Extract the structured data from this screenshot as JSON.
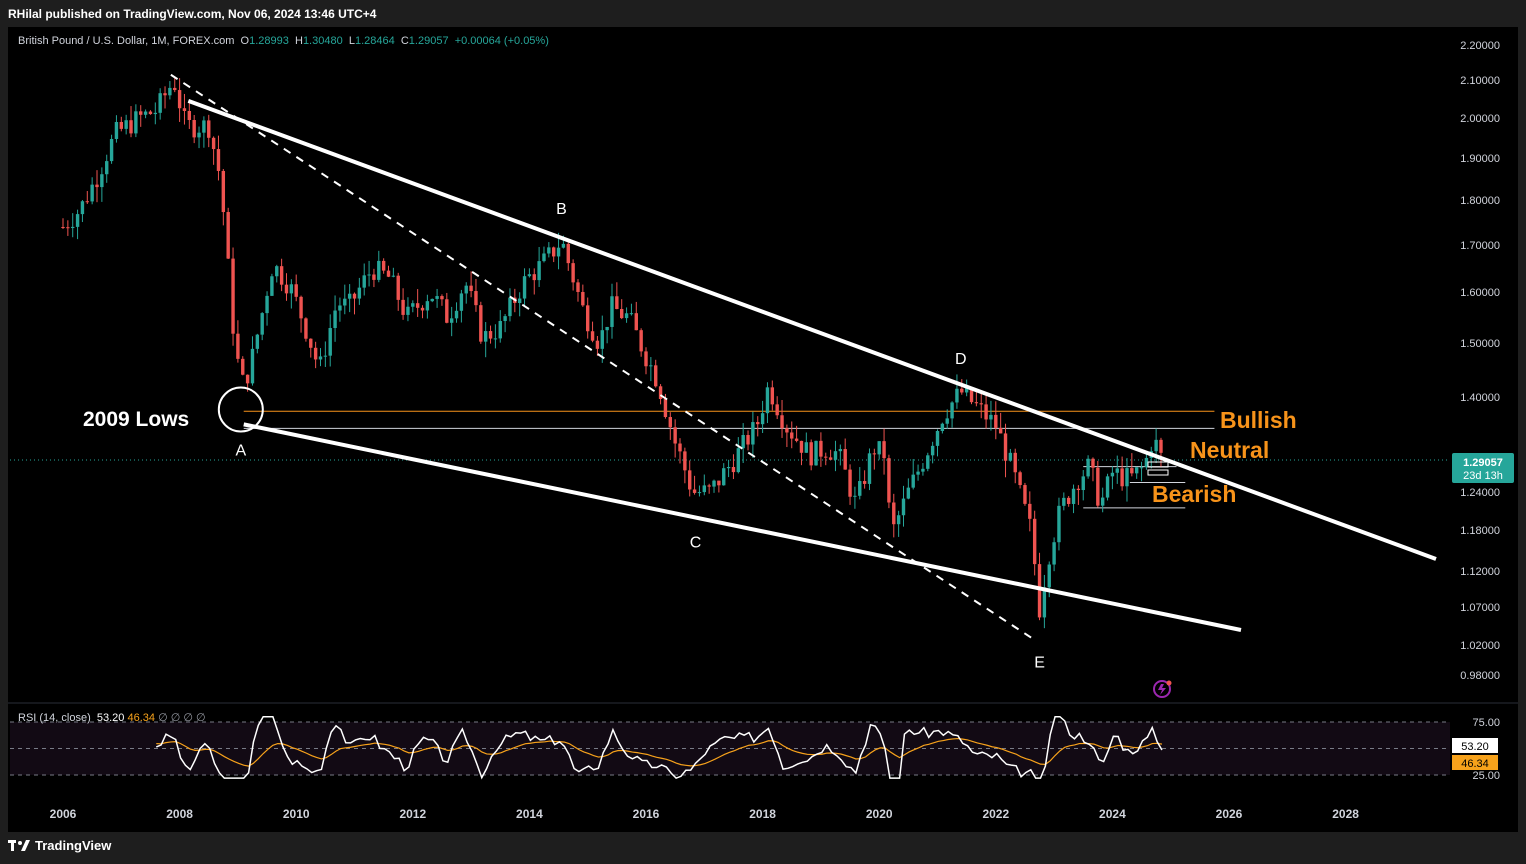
{
  "publisher": "RHilal published on TradingView.com, Nov 06, 2024 13:46 UTC+4",
  "legend": {
    "symbol": "British Pound / U.S. Dollar, 1M, FOREX.com",
    "o_label": "O",
    "o_value": "1.28993",
    "h_label": "H",
    "h_value": "1.30480",
    "l_label": "L",
    "l_value": "1.28464",
    "c_label": "C",
    "c_value": "1.29057",
    "change": "+0.00064 (+0.05%)"
  },
  "rsi_legend": {
    "name": "RSI (14, close)",
    "rsi_value": "53.20",
    "ma_value": "46.34",
    "placeholders": "∅ ∅ ∅ ∅"
  },
  "price_badge": {
    "price": "1.29057",
    "countdown": "23d 13h"
  },
  "rsi_badges": {
    "rsi": "53.20",
    "ma": "46.34"
  },
  "annotations": {
    "lows": "2009 Lows",
    "A": "A",
    "B": "B",
    "C": "C",
    "D": "D",
    "E": "E",
    "bullish": "Bullish",
    "neutral": "Neutral",
    "bearish": "Bearish"
  },
  "footer": {
    "brand": "TradingView"
  },
  "colors": {
    "up": "#26a69a",
    "down": "#ef5350",
    "orange": "#f7931a",
    "rsi_line": "#ffffff",
    "rsi_ma": "#f7a21b",
    "badge": "#26a69a"
  },
  "chart_data": {
    "type": "candlestick",
    "timeframe": "1M",
    "y_axis_labels": [
      "2.20000",
      "2.10000",
      "2.00000",
      "1.90000",
      "1.80000",
      "1.70000",
      "1.60000",
      "1.50000",
      "1.40000",
      "1.24000",
      "1.18000",
      "1.12000",
      "1.07000",
      "1.02000",
      "0.98000"
    ],
    "x_axis_labels": [
      "2006",
      "2008",
      "2010",
      "2012",
      "2014",
      "2016",
      "2018",
      "2020",
      "2022",
      "2024",
      "2026",
      "2028"
    ],
    "rsi_axis_labels": [
      "75.00",
      "25.00"
    ],
    "price_path": [
      [
        2006.0,
        1.74
      ],
      [
        2006.3,
        1.78
      ],
      [
        2006.6,
        1.86
      ],
      [
        2006.9,
        1.96
      ],
      [
        2007.3,
        2.0
      ],
      [
        2007.6,
        2.02
      ],
      [
        2007.9,
        2.1
      ],
      [
        2008.1,
        1.98
      ],
      [
        2008.5,
        1.98
      ],
      [
        2008.7,
        1.85
      ],
      [
        2008.9,
        1.55
      ],
      [
        2009.05,
        1.42
      ],
      [
        2009.2,
        1.45
      ],
      [
        2009.4,
        1.55
      ],
      [
        2009.6,
        1.66
      ],
      [
        2009.9,
        1.61
      ],
      [
        2010.1,
        1.55
      ],
      [
        2010.4,
        1.45
      ],
      [
        2010.7,
        1.58
      ],
      [
        2010.9,
        1.57
      ],
      [
        2011.3,
        1.65
      ],
      [
        2011.6,
        1.63
      ],
      [
        2011.9,
        1.55
      ],
      [
        2012.3,
        1.6
      ],
      [
        2012.6,
        1.55
      ],
      [
        2012.9,
        1.62
      ],
      [
        2013.2,
        1.51
      ],
      [
        2013.5,
        1.53
      ],
      [
        2013.9,
        1.62
      ],
      [
        2014.3,
        1.67
      ],
      [
        2014.55,
        1.71
      ],
      [
        2014.9,
        1.57
      ],
      [
        2015.2,
        1.5
      ],
      [
        2015.4,
        1.57
      ],
      [
        2015.7,
        1.55
      ],
      [
        2015.9,
        1.5
      ],
      [
        2016.2,
        1.43
      ],
      [
        2016.5,
        1.32
      ],
      [
        2016.8,
        1.24
      ],
      [
        2017.1,
        1.24
      ],
      [
        2017.5,
        1.29
      ],
      [
        2017.9,
        1.35
      ],
      [
        2018.1,
        1.42
      ],
      [
        2018.4,
        1.35
      ],
      [
        2018.8,
        1.3
      ],
      [
        2019.1,
        1.31
      ],
      [
        2019.3,
        1.3
      ],
      [
        2019.6,
        1.22
      ],
      [
        2019.9,
        1.31
      ],
      [
        2020.1,
        1.3
      ],
      [
        2020.2,
        1.17
      ],
      [
        2020.5,
        1.24
      ],
      [
        2020.8,
        1.3
      ],
      [
        2021.1,
        1.37
      ],
      [
        2021.4,
        1.41
      ],
      [
        2021.7,
        1.38
      ],
      [
        2022.0,
        1.35
      ],
      [
        2022.3,
        1.27
      ],
      [
        2022.6,
        1.18
      ],
      [
        2022.75,
        1.07
      ],
      [
        2022.9,
        1.14
      ],
      [
        2023.1,
        1.21
      ],
      [
        2023.4,
        1.26
      ],
      [
        2023.6,
        1.28
      ],
      [
        2023.8,
        1.22
      ],
      [
        2024.0,
        1.27
      ],
      [
        2024.3,
        1.26
      ],
      [
        2024.55,
        1.28
      ],
      [
        2024.7,
        1.33
      ],
      [
        2024.85,
        1.29
      ]
    ],
    "key_points": [
      {
        "label": "A",
        "x": 2009.05,
        "y": 1.35
      },
      {
        "label": "B",
        "x": 2014.55,
        "y": 1.72
      },
      {
        "label": "C",
        "x": 2016.85,
        "y": 1.2
      },
      {
        "label": "D",
        "x": 2021.4,
        "y": 1.42
      },
      {
        "label": "E",
        "x": 2022.75,
        "y": 1.03
      }
    ],
    "levels": [
      {
        "name": "2009 Lows",
        "price": 1.375
      },
      {
        "name": "Bullish",
        "price": 1.345
      },
      {
        "name": "Neutral",
        "price": 1.28
      },
      {
        "name": "Bearish",
        "price": 1.255
      },
      {
        "name": "Bearish lower",
        "price": 1.215
      }
    ],
    "current_price": 1.29057,
    "rsi": {
      "period": 14,
      "overbought": 75,
      "oversold": 25,
      "last": 53.2,
      "ma_last": 46.34
    }
  }
}
